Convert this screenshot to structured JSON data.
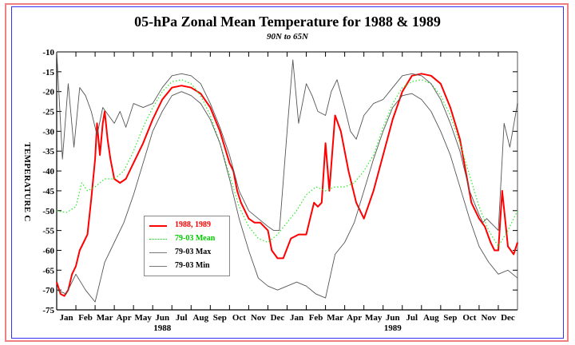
{
  "chart_data": {
    "type": "line",
    "title": "05-hPa Zonal Mean Temperature for 1988 & 1989",
    "subtitle": "90N to 65N",
    "xlabel": "",
    "ylabel": "TEMPERATURE C",
    "ylim": [
      -75,
      -10
    ],
    "yticks": [
      -10,
      -15,
      -20,
      -25,
      -30,
      -35,
      -40,
      -45,
      -50,
      -55,
      -60,
      -65,
      -70,
      -75
    ],
    "xlim_months": [
      0,
      24
    ],
    "xticks": [
      "Jan",
      "Feb",
      "Mar",
      "Apr",
      "May",
      "Jun",
      "Jul",
      "Aug",
      "Sep",
      "Oct",
      "Nov",
      "Dec",
      "Jan",
      "Feb",
      "Mar",
      "Apr",
      "May",
      "Jun",
      "Jul",
      "Aug",
      "Sep",
      "Oct",
      "Nov",
      "Dec"
    ],
    "year_labels": [
      {
        "label": "1988",
        "month": 5.5
      },
      {
        "label": "1989",
        "month": 17.5
      }
    ],
    "grid": false,
    "legend_placement": "lower-left",
    "legend": [
      {
        "label": "1988, 1989",
        "color": "#ff0000",
        "style": "solid"
      },
      {
        "label": "79-03 Mean",
        "color": "#00dd00",
        "style": "dotted"
      },
      {
        "label": "79-03 Max",
        "color": "#555555",
        "style": "solid"
      },
      {
        "label": "79-03 Min",
        "color": "#555555",
        "style": "solid"
      }
    ],
    "series": [
      {
        "name": "1988, 1989",
        "color": "#ff0000",
        "x_months": [
          0,
          0.2,
          0.4,
          0.6,
          0.8,
          1.0,
          1.2,
          1.4,
          1.6,
          1.8,
          2.0,
          2.1,
          2.25,
          2.4,
          2.5,
          2.65,
          2.8,
          3.0,
          3.3,
          3.6,
          4.0,
          4.5,
          5.0,
          5.5,
          6.0,
          6.5,
          7.0,
          7.5,
          8.0,
          8.5,
          9.0,
          9.2,
          9.4,
          9.6,
          10.0,
          10.3,
          10.6,
          11.0,
          11.2,
          11.5,
          11.8,
          12.2,
          12.6,
          13.0,
          13.2,
          13.4,
          13.6,
          13.8,
          14.0,
          14.2,
          14.5,
          14.8,
          15.2,
          15.6,
          16.0,
          16.5,
          17.0,
          17.5,
          18.0,
          18.5,
          19.0,
          19.5,
          20.0,
          20.5,
          21.0,
          21.3,
          21.6,
          22.0,
          22.3,
          22.6,
          22.8,
          23.0,
          23.2,
          23.5,
          23.8,
          24.0
        ],
        "values": [
          -68,
          -71,
          -71.5,
          -70,
          -66,
          -64,
          -60,
          -58,
          -56,
          -47,
          -37,
          -28,
          -36,
          -28,
          -25,
          -32,
          -37,
          -42,
          -43,
          -42,
          -38,
          -33,
          -27,
          -22,
          -19,
          -18.5,
          -19,
          -20.5,
          -24,
          -30,
          -38,
          -40,
          -45,
          -48,
          -52,
          -53,
          -53,
          -55,
          -60,
          -62,
          -62,
          -57,
          -56,
          -56,
          -52,
          -48,
          -49,
          -48,
          -33,
          -45,
          -26,
          -30,
          -40,
          -48,
          -52,
          -45,
          -36,
          -27,
          -20,
          -16,
          -15.5,
          -16,
          -18,
          -24,
          -32,
          -40,
          -48,
          -52,
          -54,
          -58,
          -60,
          -60,
          -45,
          -59,
          -61,
          -58
        ],
        "note": "gaps near Mar 1988 and Mar 1989"
      },
      {
        "name": "79-03 Mean",
        "color": "#00dd00",
        "x_months": [
          0,
          0.5,
          1.0,
          1.3,
          1.6,
          2.0,
          2.5,
          3.0,
          3.5,
          4.0,
          4.5,
          5.0,
          5.5,
          6.0,
          6.5,
          7.0,
          7.5,
          8.0,
          8.5,
          9.0,
          9.5,
          10.0,
          10.5,
          11.0,
          11.5,
          12.0,
          12.5,
          13.0,
          13.5,
          14.0,
          14.5,
          15.0,
          15.5,
          16.0,
          16.5,
          17.0,
          17.5,
          18.0,
          18.5,
          19.0,
          19.5,
          20.0,
          20.5,
          21.0,
          21.5,
          22.0,
          22.5,
          23.0,
          23.5,
          24.0
        ],
        "values": [
          -50,
          -50.5,
          -49,
          -43,
          -45,
          -44,
          -42,
          -42,
          -40,
          -35,
          -29,
          -24,
          -20,
          -17.5,
          -17,
          -18,
          -21,
          -26,
          -33,
          -41,
          -49,
          -54,
          -57,
          -58,
          -56,
          -53,
          -50,
          -46,
          -44,
          -45,
          -44,
          -44,
          -43,
          -40,
          -36,
          -29,
          -23,
          -19,
          -17.5,
          -17,
          -18,
          -21,
          -26,
          -33,
          -41,
          -49,
          -55,
          -59,
          -55,
          -50
        ]
      },
      {
        "name": "79-03 Max",
        "color": "#555555",
        "x_months": [
          0,
          0.3,
          0.6,
          0.9,
          1.2,
          1.5,
          1.8,
          2.1,
          2.4,
          2.7,
          3.0,
          3.3,
          3.6,
          4.0,
          4.5,
          5.0,
          5.5,
          6.0,
          6.5,
          7.0,
          7.5,
          8.0,
          8.5,
          9.0,
          9.5,
          10.0,
          10.5,
          11.0,
          11.3,
          11.6,
          12.0,
          12.3,
          12.6,
          13.0,
          13.3,
          13.6,
          14.0,
          14.3,
          14.6,
          15.0,
          15.3,
          15.6,
          16.0,
          16.5,
          17.0,
          17.5,
          18.0,
          18.5,
          19.0,
          19.5,
          20.0,
          20.5,
          21.0,
          21.5,
          22.0,
          22.2,
          22.4,
          22.6,
          22.8,
          23.0,
          23.3,
          23.6,
          24.0
        ],
        "values": [
          -10,
          -37,
          -18,
          -34,
          -19,
          -21,
          -25,
          -31,
          -24,
          -26,
          -28,
          -25,
          -29,
          -23,
          -24,
          -23,
          -19,
          -16,
          -15.5,
          -16,
          -18,
          -23,
          -29,
          -36,
          -45,
          -50,
          -52,
          -54,
          -55,
          -55,
          -30,
          -12,
          -28,
          -18,
          -21,
          -25,
          -26,
          -20,
          -17,
          -24,
          -30,
          -32,
          -26,
          -23,
          -22,
          -19,
          -16,
          -15.5,
          -16,
          -18,
          -22,
          -28,
          -35,
          -45,
          -51,
          -53,
          -52,
          -53,
          -54,
          -55,
          -28,
          -34,
          -23
        ]
      },
      {
        "name": "79-03 Min",
        "color": "#555555",
        "x_months": [
          0,
          0.5,
          1.0,
          1.5,
          2.0,
          2.5,
          3.0,
          3.5,
          4.0,
          4.5,
          5.0,
          5.5,
          6.0,
          6.5,
          7.0,
          7.5,
          8.0,
          8.5,
          9.0,
          9.5,
          10.0,
          10.5,
          11.0,
          11.5,
          12.0,
          12.5,
          13.0,
          13.5,
          14.0,
          14.5,
          15.0,
          15.5,
          16.0,
          16.5,
          17.0,
          17.5,
          18.0,
          18.5,
          19.0,
          19.5,
          20.0,
          20.5,
          21.0,
          21.5,
          22.0,
          22.5,
          23.0,
          23.5,
          24.0
        ],
        "values": [
          -70,
          -71,
          -66,
          -70,
          -73,
          -63,
          -58,
          -53,
          -46,
          -38,
          -30,
          -25,
          -21,
          -20,
          -21,
          -23,
          -27,
          -33,
          -42,
          -52,
          -60,
          -67,
          -69,
          -70,
          -69,
          -68,
          -69,
          -71,
          -72,
          -61,
          -58,
          -53,
          -45,
          -37,
          -30,
          -24,
          -21,
          -20.5,
          -22,
          -25,
          -30,
          -36,
          -44,
          -52,
          -59,
          -63,
          -66,
          -65,
          -67
        ]
      }
    ]
  }
}
